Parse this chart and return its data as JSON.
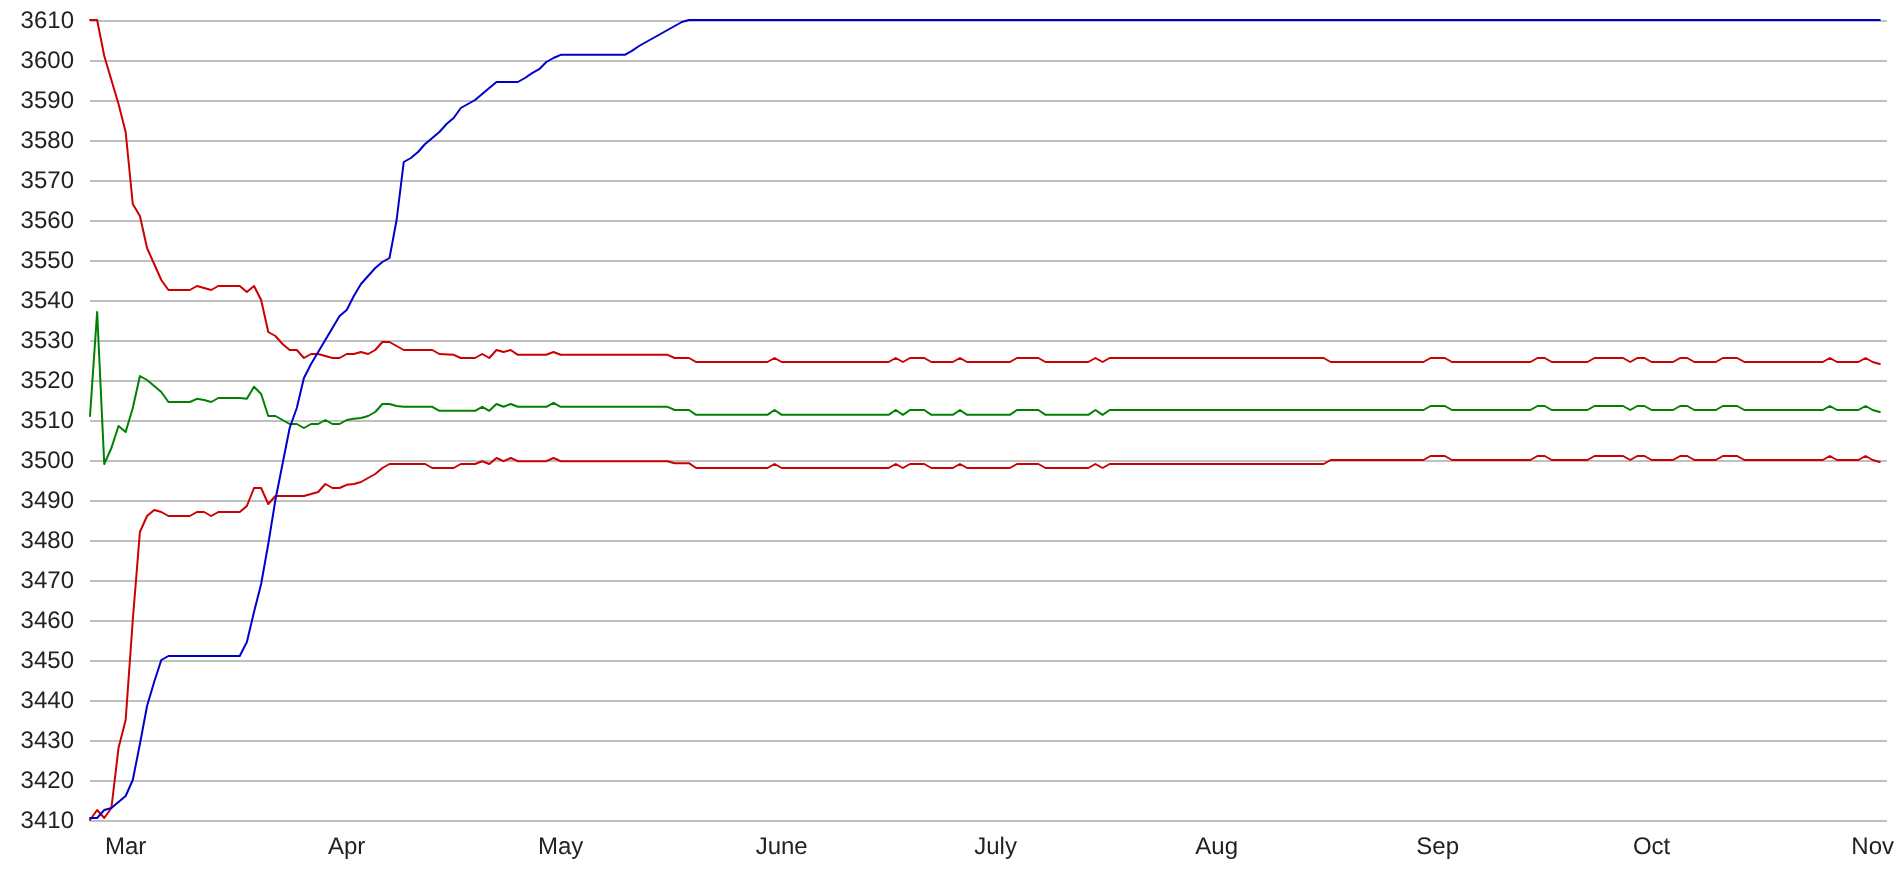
{
  "chart_data": {
    "type": "line",
    "grid": "y",
    "marker": "none",
    "line_style": "solid",
    "xlim": [
      "--02-24",
      "--11-03"
    ],
    "xticks": [
      {
        "value": "--03-01",
        "label": "Mar"
      },
      {
        "value": "--04-01",
        "label": "Apr"
      },
      {
        "value": "--05-01",
        "label": "May"
      },
      {
        "value": "--06-01",
        "label": "June"
      },
      {
        "value": "--07-01",
        "label": "July"
      },
      {
        "value": "--08-01",
        "label": "Aug"
      },
      {
        "value": "--09-01",
        "label": "Sep"
      },
      {
        "value": "--10-01",
        "label": "Oct"
      },
      {
        "value": "--11-01",
        "label": "Nov"
      }
    ],
    "ylim": [
      3410,
      3610
    ],
    "yticks": [
      3410,
      3420,
      3430,
      3440,
      3450,
      3460,
      3470,
      3480,
      3490,
      3500,
      3510,
      3520,
      3530,
      3540,
      3550,
      3560,
      3570,
      3580,
      3590,
      3600,
      3610
    ],
    "series": [
      {
        "color": "#cc0000",
        "x": [
          "--02-24",
          "--02-25",
          "--02-26",
          "--02-27",
          "--02-28",
          "--03-01",
          "--03-02",
          "--03-03",
          "--03-04",
          "--03-05",
          "--03-06",
          "--03-07",
          "--03-10",
          "--03-11",
          "--03-12",
          "--03-13",
          "--03-14",
          "--03-17",
          "--03-18",
          "--03-19",
          "--03-20",
          "--03-21",
          "--03-22",
          "--03-23",
          "--03-24",
          "--03-25",
          "--03-26",
          "--03-27",
          "--03-28",
          "--03-29",
          "--03-30",
          "--03-31",
          "--04-01",
          "--04-02",
          "--04-03",
          "--04-04",
          "--04-05",
          "--04-06",
          "--04-07",
          "--04-08",
          "--04-09",
          "--04-13",
          "--04-14",
          "--04-16",
          "--04-17",
          "--04-19",
          "--04-20",
          "--04-21",
          "--04-22",
          "--04-23",
          "--04-24",
          "--04-25",
          "--04-29",
          "--04-30",
          "--05-01",
          "--05-16",
          "--05-17",
          "--05-19",
          "--05-20",
          "--05-30",
          "--05-31",
          "--06-01",
          "--06-16",
          "--06-17",
          "--06-18",
          "--06-19",
          "--06-21",
          "--06-22",
          "--06-25",
          "--06-26",
          "--06-27",
          "--07-03",
          "--07-04",
          "--07-07",
          "--07-08",
          "--07-14",
          "--07-15",
          "--07-16",
          "--07-17",
          "--08-16",
          "--08-17",
          "--08-30",
          "--08-31",
          "--09-02",
          "--09-03",
          "--09-14",
          "--09-15",
          "--09-16",
          "--09-17",
          "--09-22",
          "--09-23",
          "--09-27",
          "--09-28",
          "--09-29",
          "--09-30",
          "--10-01",
          "--10-04",
          "--10-05",
          "--10-06",
          "--10-07",
          "--10-10",
          "--10-11",
          "--10-13",
          "--10-14",
          "--10-25",
          "--10-26",
          "--10-27",
          "--10-30",
          "--10-31",
          "--11-01",
          "--11-02"
        ],
        "values": [
          3610,
          3610,
          3601,
          3595,
          3589,
          3582,
          3564,
          3561,
          3553,
          3549,
          3545,
          3542.5,
          3542.5,
          3543.5,
          3543,
          3542.5,
          3543.5,
          3543.5,
          3542,
          3543.5,
          3540,
          3532,
          3531,
          3529,
          3527.5,
          3527.5,
          3525.5,
          3526.5,
          3526.5,
          3526,
          3525.5,
          3525.5,
          3526.5,
          3526.5,
          3527,
          3526.5,
          3527.5,
          3529.5,
          3529.5,
          3528.5,
          3527.5,
          3527.5,
          3526.5,
          3526.3,
          3525.5,
          3525.5,
          3526.5,
          3525.5,
          3527.5,
          3527,
          3527.5,
          3526.3,
          3526.3,
          3527,
          3526.3,
          3526.3,
          3525.5,
          3525.5,
          3524.5,
          3524.5,
          3525.5,
          3524.5,
          3524.5,
          3525.5,
          3524.5,
          3525.5,
          3525.5,
          3524.5,
          3524.5,
          3525.5,
          3524.5,
          3524.5,
          3525.5,
          3525.5,
          3524.5,
          3524.5,
          3525.5,
          3524.5,
          3525.5,
          3525.5,
          3524.5,
          3524.5,
          3525.5,
          3525.5,
          3524.5,
          3524.5,
          3525.5,
          3525.5,
          3524.5,
          3524.5,
          3525.5,
          3525.5,
          3524.5,
          3525.5,
          3525.5,
          3524.5,
          3524.5,
          3525.5,
          3525.5,
          3524.5,
          3524.5,
          3525.5,
          3525.5,
          3524.5,
          3524.5,
          3525.5,
          3524.5,
          3524.5,
          3525.5,
          3524.5,
          3524
        ]
      },
      {
        "color": "#cc0000",
        "x": [
          "--02-24",
          "--02-25",
          "--02-26",
          "--02-27",
          "--02-28",
          "--03-01",
          "--03-02",
          "--03-03",
          "--03-04",
          "--03-05",
          "--03-06",
          "--03-07",
          "--03-10",
          "--03-11",
          "--03-12",
          "--03-13",
          "--03-14",
          "--03-17",
          "--03-18",
          "--03-19",
          "--03-20",
          "--03-21",
          "--03-22",
          "--03-26",
          "--03-27",
          "--03-28",
          "--03-29",
          "--03-30",
          "--03-31",
          "--04-01",
          "--04-02",
          "--04-03",
          "--04-04",
          "--04-05",
          "--04-06",
          "--04-07",
          "--04-12",
          "--04-13",
          "--04-16",
          "--04-17",
          "--04-19",
          "--04-20",
          "--04-21",
          "--04-22",
          "--04-23",
          "--04-24",
          "--04-25",
          "--04-29",
          "--04-30",
          "--05-01",
          "--05-16",
          "--05-17",
          "--05-19",
          "--05-20",
          "--05-30",
          "--05-31",
          "--06-01",
          "--06-16",
          "--06-17",
          "--06-18",
          "--06-19",
          "--06-21",
          "--06-22",
          "--06-25",
          "--06-26",
          "--06-27",
          "--07-03",
          "--07-04",
          "--07-07",
          "--07-08",
          "--07-14",
          "--07-15",
          "--07-16",
          "--07-17",
          "--08-16",
          "--08-17",
          "--08-30",
          "--08-31",
          "--09-02",
          "--09-03",
          "--09-14",
          "--09-15",
          "--09-16",
          "--09-17",
          "--09-22",
          "--09-23",
          "--09-27",
          "--09-28",
          "--09-29",
          "--09-30",
          "--10-01",
          "--10-04",
          "--10-05",
          "--10-06",
          "--10-07",
          "--10-10",
          "--10-11",
          "--10-13",
          "--10-14",
          "--10-25",
          "--10-26",
          "--10-27",
          "--10-30",
          "--10-31",
          "--11-01",
          "--11-02"
        ],
        "values": [
          3410,
          3412.5,
          3410.5,
          3413,
          3428,
          3435,
          3460,
          3482,
          3486,
          3487.5,
          3487,
          3486,
          3486,
          3487,
          3487,
          3486,
          3487,
          3487,
          3488.5,
          3493,
          3493,
          3489,
          3491,
          3491,
          3491.5,
          3492,
          3494,
          3493,
          3493,
          3493.8,
          3494,
          3494.5,
          3495.5,
          3496.5,
          3498,
          3499,
          3499,
          3498,
          3498,
          3499,
          3499,
          3499.7,
          3499,
          3500.5,
          3499.7,
          3500.5,
          3499.7,
          3499.7,
          3500.5,
          3499.7,
          3499.7,
          3499.2,
          3499.2,
          3498,
          3498,
          3499,
          3498,
          3498,
          3499,
          3498,
          3499,
          3499,
          3498,
          3498,
          3499,
          3498,
          3498,
          3499,
          3499,
          3498,
          3498,
          3499,
          3498,
          3499,
          3499,
          3500,
          3500,
          3501,
          3501,
          3500,
          3500,
          3501,
          3501,
          3500,
          3500,
          3501,
          3501,
          3500,
          3501,
          3501,
          3500,
          3500,
          3501,
          3501,
          3500,
          3500,
          3501,
          3501,
          3500,
          3500,
          3501,
          3500,
          3500,
          3501,
          3500,
          3499.5
        ]
      },
      {
        "color": "#008000",
        "x": [
          "--02-24",
          "--02-25",
          "--02-26",
          "--02-27",
          "--02-28",
          "--03-01",
          "--03-02",
          "--03-03",
          "--03-04",
          "--03-05",
          "--03-06",
          "--03-07",
          "--03-10",
          "--03-11",
          "--03-12",
          "--03-13",
          "--03-14",
          "--03-17",
          "--03-18",
          "--03-19",
          "--03-20",
          "--03-21",
          "--03-22",
          "--03-23",
          "--03-24",
          "--03-25",
          "--03-26",
          "--03-27",
          "--03-28",
          "--03-29",
          "--03-30",
          "--03-31",
          "--04-01",
          "--04-02",
          "--04-03",
          "--04-04",
          "--04-05",
          "--04-06",
          "--04-07",
          "--04-08",
          "--04-09",
          "--04-13",
          "--04-14",
          "--04-19",
          "--04-20",
          "--04-21",
          "--04-22",
          "--04-23",
          "--04-24",
          "--04-25",
          "--04-29",
          "--04-30",
          "--05-01",
          "--05-16",
          "--05-17",
          "--05-19",
          "--05-20",
          "--05-30",
          "--05-31",
          "--06-01",
          "--06-16",
          "--06-17",
          "--06-18",
          "--06-19",
          "--06-21",
          "--06-22",
          "--06-25",
          "--06-26",
          "--06-27",
          "--07-03",
          "--07-04",
          "--07-07",
          "--07-08",
          "--07-14",
          "--07-15",
          "--07-16",
          "--07-17",
          "--08-30",
          "--08-31",
          "--09-02",
          "--09-03",
          "--09-14",
          "--09-15",
          "--09-16",
          "--09-17",
          "--09-22",
          "--09-23",
          "--09-27",
          "--09-28",
          "--09-29",
          "--09-30",
          "--10-01",
          "--10-04",
          "--10-05",
          "--10-06",
          "--10-07",
          "--10-10",
          "--10-11",
          "--10-13",
          "--10-14",
          "--10-25",
          "--10-26",
          "--10-27",
          "--10-30",
          "--10-31",
          "--11-01",
          "--11-02"
        ],
        "values": [
          3511,
          3537,
          3499,
          3503,
          3508.5,
          3507,
          3513,
          3521,
          3520,
          3518.5,
          3517,
          3514.5,
          3514.5,
          3515.3,
          3515,
          3514.5,
          3515.5,
          3515.5,
          3515.3,
          3518.3,
          3516.5,
          3511,
          3511,
          3510,
          3509,
          3509,
          3508,
          3509,
          3509,
          3510,
          3509,
          3509,
          3510,
          3510.3,
          3510.5,
          3511,
          3512,
          3514,
          3514,
          3513.5,
          3513.3,
          3513.3,
          3512.3,
          3512.3,
          3513.3,
          3512.3,
          3514,
          3513.3,
          3514,
          3513.3,
          3513.3,
          3514.3,
          3513.3,
          3513.3,
          3512.5,
          3512.5,
          3511.3,
          3511.3,
          3512.5,
          3511.3,
          3511.3,
          3512.5,
          3511.3,
          3512.5,
          3512.5,
          3511.3,
          3511.3,
          3512.5,
          3511.3,
          3511.3,
          3512.5,
          3512.5,
          3511.3,
          3511.3,
          3512.5,
          3511.3,
          3512.5,
          3512.5,
          3513.5,
          3513.5,
          3512.5,
          3512.5,
          3513.5,
          3513.5,
          3512.5,
          3512.5,
          3513.5,
          3513.5,
          3512.5,
          3513.5,
          3513.5,
          3512.5,
          3512.5,
          3513.5,
          3513.5,
          3512.5,
          3512.5,
          3513.5,
          3513.5,
          3512.5,
          3512.5,
          3513.5,
          3512.5,
          3512.5,
          3513.5,
          3512.5,
          3512
        ]
      },
      {
        "color": "#0000cc",
        "x": [
          "--02-24",
          "--02-25",
          "--02-26",
          "--02-27",
          "--02-28",
          "--03-01",
          "--03-02",
          "--03-03",
          "--03-04",
          "--03-05",
          "--03-06",
          "--03-07",
          "--03-17",
          "--03-18",
          "--03-19",
          "--03-20",
          "--03-21",
          "--03-22",
          "--03-23",
          "--03-24",
          "--03-25",
          "--03-26",
          "--03-27",
          "--03-28",
          "--03-29",
          "--03-30",
          "--03-31",
          "--04-01",
          "--04-02",
          "--04-03",
          "--04-04",
          "--04-05",
          "--04-06",
          "--04-07",
          "--04-08",
          "--04-09",
          "--04-10",
          "--04-11",
          "--04-12",
          "--04-13",
          "--04-14",
          "--04-15",
          "--04-16",
          "--04-17",
          "--04-18",
          "--04-19",
          "--04-20",
          "--04-21",
          "--04-22",
          "--04-25",
          "--04-26",
          "--04-27",
          "--04-28",
          "--04-29",
          "--04-30",
          "--05-01",
          "--05-10",
          "--05-11",
          "--05-12",
          "--05-13",
          "--05-14",
          "--05-15",
          "--05-16",
          "--05-17",
          "--05-18",
          "--05-19",
          "--11-02"
        ],
        "values": [
          3410.5,
          3410.5,
          3412.5,
          3413,
          3414.5,
          3416,
          3420,
          3429,
          3438.5,
          3444.5,
          3450,
          3451,
          3451,
          3454.5,
          3462,
          3469,
          3479,
          3490,
          3499,
          3508,
          3513,
          3520.5,
          3524,
          3527,
          3530,
          3533,
          3536,
          3537.5,
          3541,
          3544,
          3546,
          3548,
          3549.5,
          3550.5,
          3560,
          3574.5,
          3575.5,
          3577,
          3579,
          3580.5,
          3582,
          3584,
          3585.5,
          3588,
          3589,
          3590,
          3591.5,
          3593,
          3594.5,
          3594.5,
          3595.5,
          3596.7,
          3597.7,
          3599.5,
          3600.5,
          3601.3,
          3601.3,
          3602.3,
          3603.5,
          3604.5,
          3605.5,
          3606.5,
          3607.5,
          3608.5,
          3609.5,
          3610,
          3610
        ]
      }
    ]
  }
}
